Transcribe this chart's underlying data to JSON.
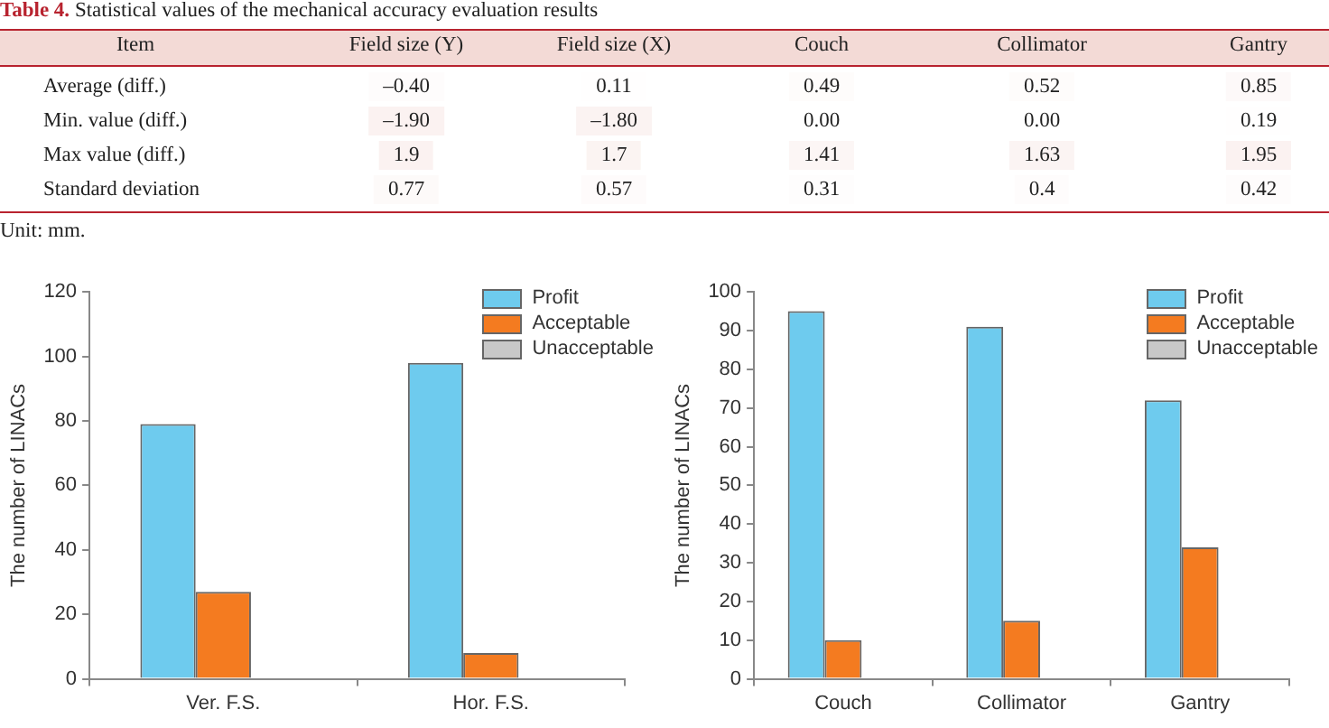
{
  "chart_data": [
    {
      "type": "heatmap",
      "title": "Table 4. Statistical values of the mechanical accuracy evaluation results",
      "ylabel": "Item",
      "categories": [
        "Field size (Y)",
        "Field size (X)",
        "Couch",
        "Collimator",
        "Gantry"
      ],
      "y_categories": [
        "Average (diff.)",
        "Min. value (diff.)",
        "Max value (diff.)",
        "Standard deviation"
      ],
      "cells": [
        [
          -0.4,
          0.11,
          0.49,
          0.52,
          0.85
        ],
        [
          -1.9,
          -1.8,
          0.0,
          0.0,
          0.19
        ],
        [
          1.9,
          1.7,
          1.41,
          1.63,
          1.95
        ],
        [
          0.77,
          0.57,
          0.31,
          0.4,
          0.42
        ]
      ],
      "cell_labels": [
        [
          "–0.40",
          "0.11",
          "0.49",
          "0.52",
          "0.85"
        ],
        [
          "–1.90",
          "–1.80",
          "0.00",
          "0.00",
          "0.19"
        ],
        [
          "1.9",
          "1.7",
          "1.41",
          "1.63",
          "1.95"
        ],
        [
          "0.77",
          "0.57",
          "0.31",
          "0.4",
          "0.42"
        ]
      ],
      "annotations": [
        "Unit: mm."
      ]
    },
    {
      "type": "bar",
      "ylabel": "The number of LINACs",
      "categories": [
        "Ver. F.S.",
        "Hor. F.S."
      ],
      "series": [
        {
          "name": "Profit",
          "color": "#6ecbee",
          "values": [
            79,
            98
          ]
        },
        {
          "name": "Acceptable",
          "color": "#f47b20",
          "values": [
            27,
            8
          ]
        },
        {
          "name": "Unacceptable",
          "color": "#c8c8c8",
          "values": [
            0,
            0
          ]
        }
      ],
      "ylim": [
        0,
        120
      ],
      "yticks": [
        0,
        20,
        40,
        60,
        80,
        100,
        120
      ],
      "grid": false,
      "legend": "top right"
    },
    {
      "type": "bar",
      "ylabel": "The number of LINACs",
      "categories": [
        "Couch",
        "Collimator",
        "Gantry"
      ],
      "series": [
        {
          "name": "Profit",
          "color": "#6ecbee",
          "values": [
            95,
            91,
            72
          ]
        },
        {
          "name": "Acceptable",
          "color": "#f47b20",
          "values": [
            10,
            15,
            34
          ]
        },
        {
          "name": "Unacceptable",
          "color": "#c8c8c8",
          "values": [
            0,
            0,
            0
          ]
        }
      ],
      "ylim": [
        0,
        100
      ],
      "yticks": [
        0,
        10,
        20,
        30,
        40,
        50,
        60,
        70,
        80,
        90,
        100
      ],
      "grid": false,
      "legend": "top right"
    }
  ]
}
